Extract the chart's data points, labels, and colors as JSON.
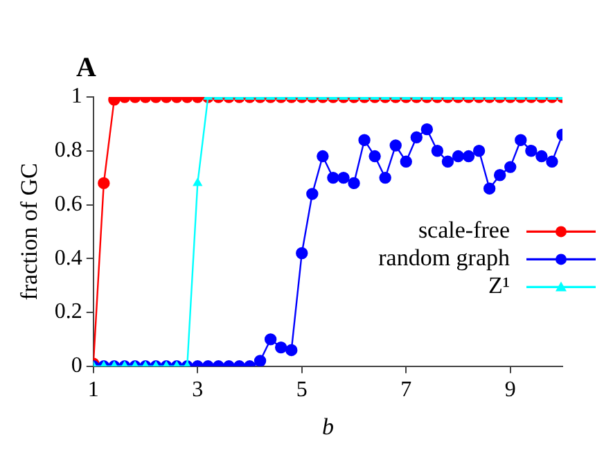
{
  "chart_data": {
    "type": "line",
    "title": "A",
    "xlabel": "b",
    "ylabel": "fraction of GC",
    "x": [
      1,
      1.2,
      1.4,
      1.6,
      1.8,
      2,
      2.2,
      2.4,
      2.6,
      2.8,
      3,
      3.2,
      3.4,
      3.6,
      3.8,
      4,
      4.2,
      4.4,
      4.6,
      4.8,
      5,
      5.2,
      5.4,
      5.6,
      5.8,
      6,
      6.2,
      6.4,
      6.6,
      6.8,
      7,
      7.2,
      7.4,
      7.6,
      7.8,
      8,
      8.2,
      8.4,
      8.6,
      8.8,
      9,
      9.2,
      9.4,
      9.6,
      9.8,
      10
    ],
    "series": [
      {
        "name": "scale-free",
        "color": "#ff0000",
        "marker": "circle",
        "values": [
          0.01,
          0.68,
          0.99,
          1,
          1,
          1,
          1,
          1,
          1,
          1,
          1,
          1,
          1,
          1,
          1,
          1,
          1,
          1,
          1,
          1,
          1,
          1,
          1,
          1,
          1,
          1,
          1,
          1,
          1,
          1,
          1,
          1,
          1,
          1,
          1,
          1,
          1,
          1,
          1,
          1,
          1,
          1,
          1,
          1,
          1,
          1
        ]
      },
      {
        "name": "random graph",
        "color": "#0000ff",
        "marker": "circle",
        "values": [
          0,
          0,
          0,
          0,
          0,
          0,
          0,
          0,
          0,
          0,
          0,
          0,
          0,
          0,
          0,
          0,
          0.02,
          0.1,
          0.07,
          0.06,
          0.42,
          0.64,
          0.78,
          0.7,
          0.7,
          0.68,
          0.84,
          0.78,
          0.7,
          0.82,
          0.76,
          0.85,
          0.88,
          0.8,
          0.76,
          0.78,
          0.78,
          0.8,
          0.66,
          0.71,
          0.74,
          0.84,
          0.8,
          0.78,
          0.76,
          0.86
        ]
      },
      {
        "name": "Z¹",
        "color": "#00ffff",
        "marker": "triangle",
        "values": [
          0,
          0,
          0,
          0,
          0,
          0,
          0,
          0,
          0,
          0,
          0.68,
          1,
          1,
          1,
          1,
          1,
          1,
          1,
          1,
          1,
          1,
          1,
          1,
          1,
          1,
          1,
          1,
          1,
          1,
          1,
          1,
          1,
          1,
          1,
          1,
          1,
          1,
          1,
          1,
          1,
          1,
          1,
          1,
          1,
          1,
          1
        ]
      }
    ],
    "xlim": [
      1,
      10
    ],
    "xticks": [
      1,
      3,
      5,
      7,
      9
    ],
    "ylim": [
      0,
      1
    ],
    "yticks": [
      0,
      0.2,
      0.4,
      0.6,
      0.8,
      1
    ],
    "grid": false,
    "legend": "right"
  }
}
